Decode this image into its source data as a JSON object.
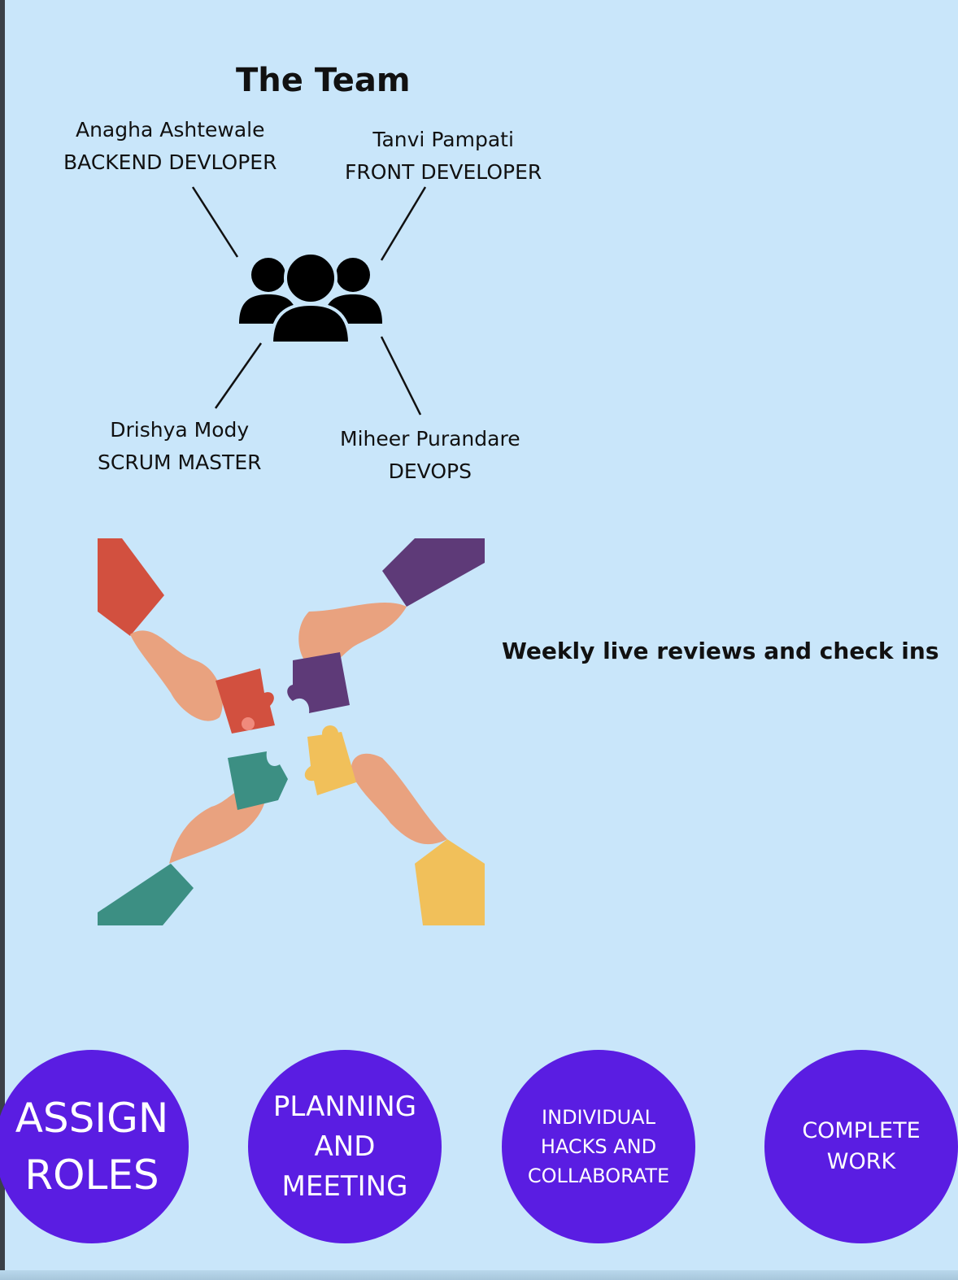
{
  "title": "The Team",
  "members": [
    {
      "name": "Anagha Ashtewale",
      "role": "BACKEND DEVLOPER"
    },
    {
      "name": "Tanvi Pampati",
      "role": "FRONT DEVELOPER"
    },
    {
      "name": "Drishya Mody",
      "role": "SCRUM MASTER"
    },
    {
      "name": "Miheer Purandare",
      "role": "DEVOPS"
    }
  ],
  "icons": {
    "team": "team-people-icon",
    "collaboration": "puzzle-hands-illustration"
  },
  "weekly_note": "Weekly live reviews and check ins",
  "steps": [
    {
      "label": "ASSIGN\nROLES"
    },
    {
      "label": "PLANNING\nAND\nMEETING"
    },
    {
      "label": "INDIVIDUAL\nHACKS AND\nCOLLABORATE"
    },
    {
      "label": "COMPLETE\nWORK"
    }
  ],
  "colors": {
    "background": "#c9e6fa",
    "step_circle": "#5a1de2",
    "step_text": "#ffffff",
    "text": "#111111"
  }
}
